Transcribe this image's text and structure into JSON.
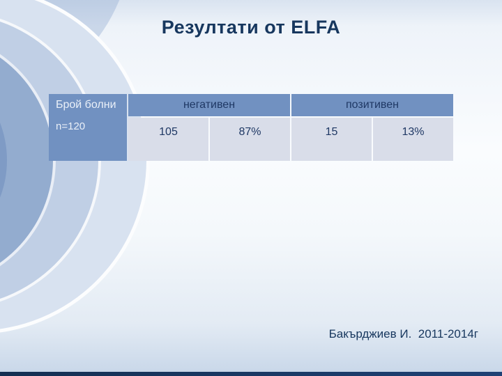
{
  "slide": {
    "title": "Резултати от ELFA",
    "footer": "Бакърджиев И.  2011-2014г"
  },
  "table": {
    "row_header": {
      "title": "Брой болни",
      "subtitle": "n=120"
    },
    "columns": [
      {
        "label": "негативен",
        "count": "105",
        "percent": "87%"
      },
      {
        "label": "позитивен",
        "count": "15",
        "percent": "13%"
      }
    ]
  },
  "chart_data": {
    "type": "table",
    "title": "Резултати от ELFA",
    "row_header": "Брой болни n=120",
    "columns": [
      "негативен",
      "позитивен"
    ],
    "values": [
      [
        105,
        "87%"
      ],
      [
        15,
        "13%"
      ]
    ]
  },
  "colors": {
    "title_text": "#17375E",
    "header_cell_bg": "#7191C1",
    "row_header_bg": "#7191C1",
    "row_header_text": "#EAF0F8",
    "data_cell_bg": "#D9DDE9",
    "data_cell_text": "#1F3864",
    "bottom_bar": "#17375E"
  }
}
